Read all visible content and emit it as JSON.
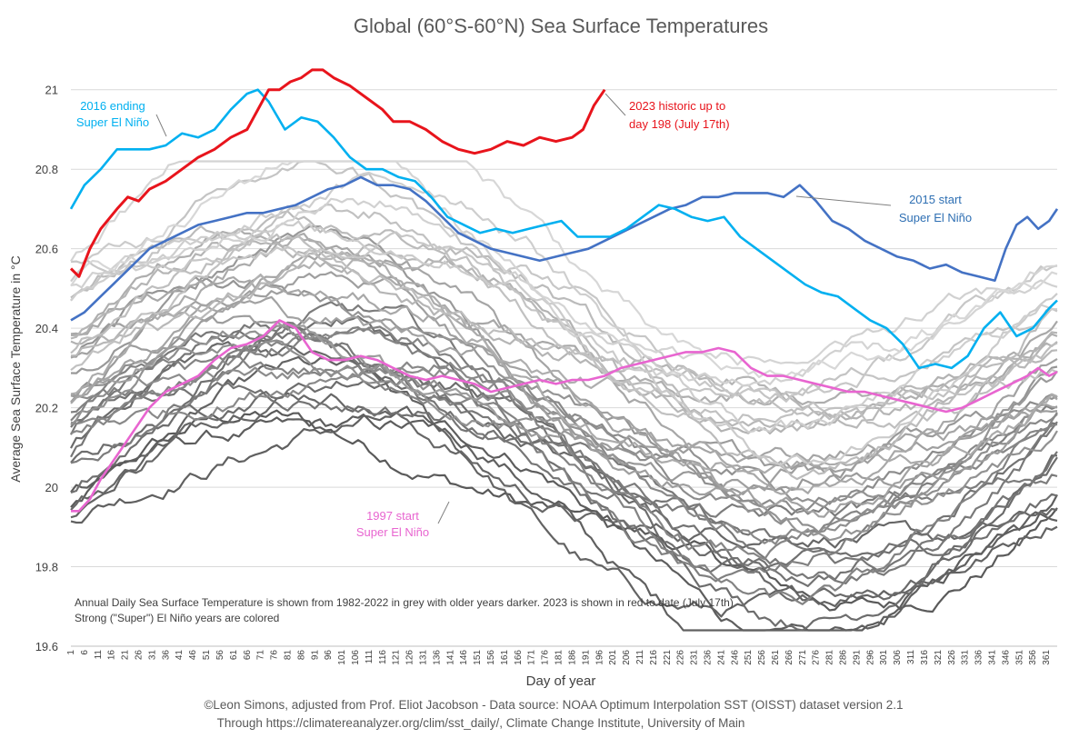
{
  "chart_data": {
    "type": "line",
    "title": "Global (60°S-60°N) Sea Surface Temperatures",
    "xlabel": "Day of year",
    "ylabel": "Average Sea Surface Temperature in °C",
    "xlim": [
      1,
      365
    ],
    "ylim": [
      19.6,
      21.1
    ],
    "y_ticks": [
      "19.6",
      "19.8",
      "20",
      "20.2",
      "20.4",
      "20.6",
      "20.8",
      "21"
    ],
    "x_ticks": [
      "1",
      "6",
      "11",
      "16",
      "21",
      "26",
      "31",
      "36",
      "41",
      "46",
      "51",
      "56",
      "61",
      "66",
      "71",
      "76",
      "81",
      "86",
      "91",
      "96",
      "101",
      "106",
      "111",
      "116",
      "121",
      "126",
      "131",
      "136",
      "141",
      "146",
      "151",
      "156",
      "161",
      "166",
      "171",
      "176",
      "181",
      "186",
      "191",
      "196",
      "201",
      "206",
      "211",
      "216",
      "221",
      "226",
      "231",
      "236",
      "241",
      "246",
      "251",
      "256",
      "261",
      "266",
      "271",
      "276",
      "281",
      "286",
      "291",
      "296",
      "301",
      "306",
      "311",
      "316",
      "321",
      "326",
      "331",
      "336",
      "341",
      "346",
      "351",
      "356",
      "361"
    ],
    "grid": true,
    "legend": "none",
    "series": [
      {
        "name": "2023",
        "color": "#e8141c",
        "x": [
          1,
          4,
          8,
          12,
          18,
          22,
          26,
          30,
          36,
          42,
          48,
          54,
          60,
          66,
          70,
          74,
          78,
          82,
          86,
          90,
          94,
          98,
          104,
          110,
          116,
          120,
          126,
          132,
          138,
          144,
          150,
          156,
          162,
          168,
          174,
          180,
          186,
          190,
          194,
          198
        ],
        "y": [
          20.55,
          20.53,
          20.6,
          20.65,
          20.7,
          20.73,
          20.72,
          20.75,
          20.77,
          20.8,
          20.83,
          20.85,
          20.88,
          20.9,
          20.95,
          21.0,
          21.0,
          21.02,
          21.03,
          21.05,
          21.05,
          21.03,
          21.01,
          20.98,
          20.95,
          20.92,
          20.92,
          20.9,
          20.87,
          20.85,
          20.84,
          20.85,
          20.87,
          20.86,
          20.88,
          20.87,
          20.88,
          20.9,
          20.96,
          21.0
        ]
      },
      {
        "name": "2016 ending Super El Niño",
        "color": "#00b0f0",
        "x": [
          1,
          6,
          12,
          18,
          24,
          30,
          36,
          42,
          48,
          54,
          60,
          66,
          70,
          74,
          80,
          86,
          92,
          98,
          104,
          110,
          116,
          122,
          128,
          134,
          140,
          146,
          152,
          158,
          164,
          170,
          176,
          182,
          188,
          194,
          200,
          206,
          212,
          218,
          224,
          230,
          236,
          242,
          248,
          254,
          260,
          266,
          272,
          278,
          284,
          290,
          296,
          302,
          308,
          314,
          320,
          326,
          332,
          338,
          344,
          350,
          356,
          362,
          365
        ],
        "y": [
          20.7,
          20.76,
          20.8,
          20.85,
          20.85,
          20.85,
          20.86,
          20.89,
          20.88,
          20.9,
          20.95,
          20.99,
          21.0,
          20.97,
          20.9,
          20.93,
          20.92,
          20.88,
          20.83,
          20.8,
          20.8,
          20.78,
          20.77,
          20.73,
          20.68,
          20.66,
          20.64,
          20.65,
          20.64,
          20.65,
          20.66,
          20.67,
          20.63,
          20.63,
          20.63,
          20.65,
          20.68,
          20.71,
          20.7,
          20.68,
          20.67,
          20.68,
          20.63,
          20.6,
          20.57,
          20.54,
          20.51,
          20.49,
          20.48,
          20.45,
          20.42,
          20.4,
          20.36,
          20.3,
          20.31,
          20.3,
          20.33,
          20.4,
          20.44,
          20.38,
          20.4,
          20.45,
          20.47
        ]
      },
      {
        "name": "2015 start Super El Niño",
        "color": "#4472c4",
        "x": [
          1,
          6,
          12,
          18,
          24,
          30,
          36,
          42,
          48,
          54,
          60,
          66,
          72,
          78,
          84,
          90,
          96,
          102,
          108,
          114,
          120,
          126,
          132,
          138,
          144,
          150,
          156,
          162,
          168,
          174,
          180,
          186,
          192,
          198,
          204,
          210,
          216,
          222,
          228,
          234,
          240,
          246,
          252,
          258,
          264,
          270,
          276,
          282,
          288,
          294,
          300,
          306,
          312,
          318,
          324,
          330,
          336,
          342,
          346,
          350,
          354,
          358,
          362,
          365
        ],
        "y": [
          20.42,
          20.44,
          20.48,
          20.52,
          20.56,
          20.6,
          20.62,
          20.64,
          20.66,
          20.67,
          20.68,
          20.69,
          20.69,
          20.7,
          20.71,
          20.73,
          20.75,
          20.76,
          20.78,
          20.76,
          20.76,
          20.75,
          20.72,
          20.68,
          20.64,
          20.62,
          20.6,
          20.59,
          20.58,
          20.57,
          20.58,
          20.59,
          20.6,
          20.62,
          20.64,
          20.66,
          20.68,
          20.7,
          20.71,
          20.73,
          20.73,
          20.74,
          20.74,
          20.74,
          20.73,
          20.76,
          20.72,
          20.67,
          20.65,
          20.62,
          20.6,
          20.58,
          20.57,
          20.55,
          20.56,
          20.54,
          20.53,
          20.52,
          20.6,
          20.66,
          20.68,
          20.65,
          20.67,
          20.7
        ]
      },
      {
        "name": "1997 start Super El Niño",
        "color": "#e865d0",
        "x": [
          1,
          4,
          8,
          12,
          18,
          24,
          30,
          36,
          42,
          48,
          54,
          60,
          66,
          72,
          78,
          84,
          90,
          96,
          102,
          108,
          114,
          120,
          126,
          132,
          138,
          144,
          150,
          156,
          162,
          168,
          174,
          180,
          186,
          192,
          198,
          204,
          210,
          216,
          222,
          228,
          234,
          240,
          246,
          252,
          258,
          264,
          270,
          276,
          282,
          288,
          294,
          300,
          306,
          312,
          318,
          324,
          330,
          336,
          342,
          348,
          354,
          358,
          362,
          365
        ],
        "y": [
          19.94,
          19.94,
          19.97,
          20.02,
          20.08,
          20.14,
          20.2,
          20.24,
          20.26,
          20.28,
          20.32,
          20.35,
          20.36,
          20.38,
          20.42,
          20.4,
          20.34,
          20.32,
          20.32,
          20.33,
          20.32,
          20.3,
          20.28,
          20.27,
          20.28,
          20.27,
          20.26,
          20.24,
          20.25,
          20.26,
          20.27,
          20.26,
          20.27,
          20.27,
          20.28,
          20.3,
          20.31,
          20.32,
          20.33,
          20.34,
          20.34,
          20.35,
          20.34,
          20.3,
          20.28,
          20.28,
          20.27,
          20.26,
          20.25,
          20.24,
          20.24,
          20.23,
          20.22,
          20.21,
          20.2,
          20.19,
          20.2,
          20.22,
          20.24,
          20.26,
          20.28,
          20.3,
          20.28,
          20.29
        ]
      }
    ],
    "background_series_note": "Annual Daily Sea Surface Temperature is shown from 1982-2022 in grey with older years darker. 2023 is shown in red to date (July 17th)",
    "background_series_note2": "Strong (\"Super\") El Niño years are colored",
    "annotations": [
      {
        "line1": "2016 ending",
        "line2": "Super El Niño",
        "color": "#00b0f0"
      },
      {
        "line1": "2023 historic up to",
        "line2": "day 198 (July 17th)",
        "color": "#e8141c"
      },
      {
        "line1": "2015 start",
        "line2": "Super El Niño",
        "color": "#2e6fb3"
      },
      {
        "line1": "1997 start",
        "line2": "Super El Niño",
        "color": "#e865d0"
      }
    ]
  },
  "footer": {
    "credit_line1": "©Leon Simons, adjusted from Prof. Eliot Jacobson - Data source: NOAA Optimum Interpolation SST (OISST) dataset version 2.1",
    "credit_line2": "Through https://climatereanalyzer.org/clim/sst_daily/, Climate Change Institute, University of Main"
  }
}
